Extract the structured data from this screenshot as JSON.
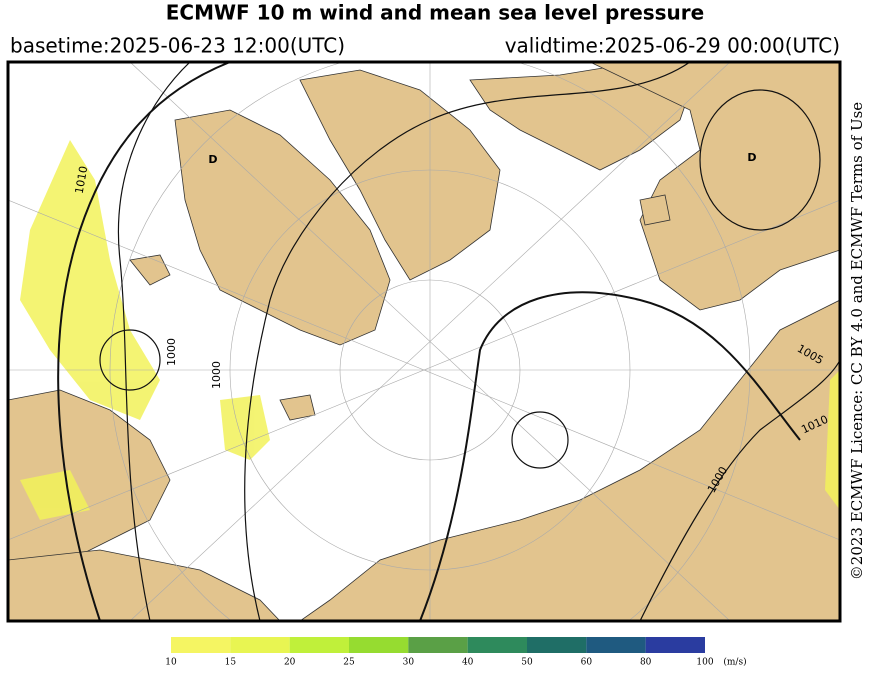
{
  "header": {
    "title": "ECMWF 10 m wind and mean sea level pressure",
    "basetime": "basetime:2025-06-23 12:00(UTC)",
    "validtime": "validtime:2025-06-29 00:00(UTC)"
  },
  "credit": "©2023 ECMWF Licence: CC BY 4.0 and ECMWF Terms of Use",
  "map": {
    "labels": [
      "D",
      "D",
      "1010",
      "1000",
      "1000",
      "1005",
      "1010",
      "1000"
    ]
  },
  "colorbar": {
    "ticks": [
      10,
      15,
      20,
      25,
      30,
      40,
      50,
      60,
      80,
      100
    ],
    "colors": [
      "#f5f562",
      "#e8f552",
      "#c0f03a",
      "#96dc30",
      "#5aa046",
      "#2e8a5c",
      "#1f6e66",
      "#1f5a80",
      "#2a3ca0"
    ],
    "unit": "(m/s)"
  }
}
